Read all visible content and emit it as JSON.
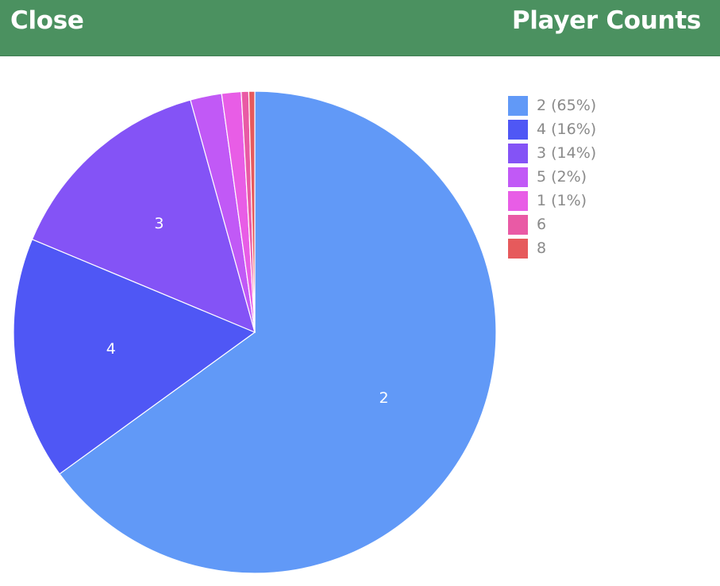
{
  "header": {
    "close_label": "Close",
    "title": "Player Counts",
    "background": "#4b9160"
  },
  "chart_data": {
    "type": "pie",
    "title": "",
    "slices": [
      {
        "label": "2",
        "legend": "2 (65%)",
        "value": 65.0,
        "color": "#6199f7",
        "show_label": true
      },
      {
        "label": "4",
        "legend": "4 (16%)",
        "value": 16.3,
        "color": "#4f57f5",
        "show_label": true
      },
      {
        "label": "3",
        "legend": "3 (14%)",
        "value": 14.4,
        "color": "#8453f6",
        "show_label": true
      },
      {
        "label": "5",
        "legend": "5 (2%)",
        "value": 2.1,
        "color": "#c159f6",
        "show_label": false
      },
      {
        "label": "1",
        "legend": "1 (1%)",
        "value": 1.3,
        "color": "#e85de6",
        "show_label": false
      },
      {
        "label": "6",
        "legend": "6",
        "value": 0.5,
        "color": "#e95aa5",
        "show_label": false
      },
      {
        "label": "8",
        "legend": "8",
        "value": 0.4,
        "color": "#e65a5c",
        "show_label": false
      }
    ],
    "start_angle": "12 o'clock",
    "direction": "clockwise",
    "legend_position": "top-right"
  }
}
